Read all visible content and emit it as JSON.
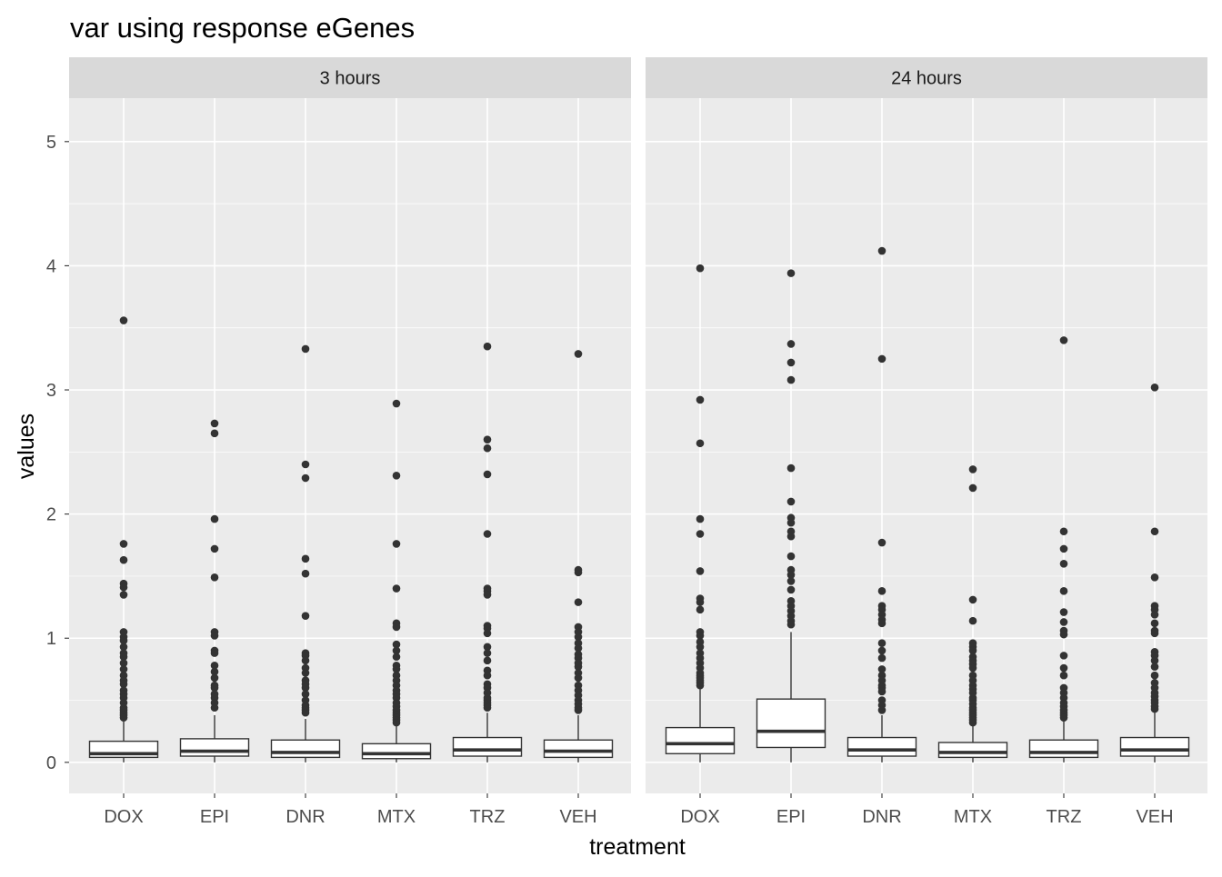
{
  "chart_data": {
    "type": "boxplot",
    "title": "var using response eGenes",
    "xlabel": "treatment",
    "ylabel": "values",
    "ylim": [
      -0.25,
      5.35
    ],
    "yticks": [
      0,
      1,
      2,
      3,
      4,
      5
    ],
    "categories": [
      "DOX",
      "EPI",
      "DNR",
      "MTX",
      "TRZ",
      "VEH"
    ],
    "grid": true,
    "colors": {
      "panel_bg": "#EBEBEB",
      "strip_bg": "#D9D9D9",
      "grid_major": "#FFFFFF",
      "box_fill": "#FFFFFF",
      "box_line": "#333333",
      "point": "#333333",
      "tick_text": "#4D4D4D",
      "text": "#000000"
    },
    "panels": [
      {
        "label": "3 hours",
        "boxes": [
          {
            "category": "DOX",
            "lower_whisker": 0.0,
            "q1": 0.04,
            "median": 0.07,
            "q3": 0.17,
            "upper_whisker": 0.33,
            "outliers": [
              3.56,
              1.76,
              1.63,
              1.44,
              1.41,
              1.35,
              1.05,
              1.01,
              0.98,
              0.93,
              0.88,
              0.85,
              0.8,
              0.75,
              0.7,
              0.66,
              0.63,
              0.58,
              0.55,
              0.52,
              0.48,
              0.44,
              0.42,
              0.4,
              0.38,
              0.36
            ]
          },
          {
            "category": "EPI",
            "lower_whisker": 0.0,
            "q1": 0.05,
            "median": 0.09,
            "q3": 0.19,
            "upper_whisker": 0.38,
            "outliers": [
              2.73,
              2.65,
              1.96,
              1.72,
              1.49,
              1.05,
              1.02,
              0.9,
              0.88,
              0.78,
              0.73,
              0.68,
              0.62,
              0.6,
              0.55,
              0.52,
              0.48,
              0.44
            ]
          },
          {
            "category": "DNR",
            "lower_whisker": 0.0,
            "q1": 0.04,
            "median": 0.08,
            "q3": 0.18,
            "upper_whisker": 0.35,
            "outliers": [
              3.33,
              2.4,
              2.29,
              1.64,
              1.52,
              1.18,
              0.88,
              0.86,
              0.82,
              0.76,
              0.72,
              0.66,
              0.63,
              0.6,
              0.55,
              0.5,
              0.46,
              0.44,
              0.42,
              0.4
            ]
          },
          {
            "category": "MTX",
            "lower_whisker": 0.0,
            "q1": 0.03,
            "median": 0.07,
            "q3": 0.15,
            "upper_whisker": 0.3,
            "outliers": [
              2.89,
              2.31,
              1.76,
              1.4,
              1.12,
              1.09,
              0.95,
              0.9,
              0.85,
              0.78,
              0.75,
              0.7,
              0.66,
              0.62,
              0.58,
              0.55,
              0.52,
              0.48,
              0.45,
              0.42,
              0.4,
              0.38,
              0.36,
              0.34,
              0.32
            ]
          },
          {
            "category": "TRZ",
            "lower_whisker": 0.0,
            "q1": 0.05,
            "median": 0.1,
            "q3": 0.2,
            "upper_whisker": 0.4,
            "outliers": [
              3.35,
              2.6,
              2.53,
              2.32,
              1.84,
              1.4,
              1.38,
              1.35,
              1.1,
              1.08,
              1.04,
              0.93,
              0.88,
              0.82,
              0.74,
              0.7,
              0.63,
              0.6,
              0.56,
              0.52,
              0.5,
              0.48,
              0.46,
              0.44
            ]
          },
          {
            "category": "VEH",
            "lower_whisker": 0.0,
            "q1": 0.04,
            "median": 0.09,
            "q3": 0.18,
            "upper_whisker": 0.38,
            "outliers": [
              3.29,
              1.55,
              1.53,
              1.29,
              1.09,
              1.05,
              1.01,
              0.96,
              0.92,
              0.87,
              0.84,
              0.8,
              0.77,
              0.72,
              0.68,
              0.62,
              0.58,
              0.54,
              0.5,
              0.47,
              0.44,
              0.42
            ]
          }
        ]
      },
      {
        "label": "24 hours",
        "boxes": [
          {
            "category": "DOX",
            "lower_whisker": 0.0,
            "q1": 0.07,
            "median": 0.15,
            "q3": 0.28,
            "upper_whisker": 0.59,
            "outliers": [
              3.98,
              2.92,
              2.57,
              1.96,
              1.84,
              1.54,
              1.32,
              1.29,
              1.23,
              1.05,
              1.02,
              0.97,
              0.93,
              0.88,
              0.84,
              0.8,
              0.76,
              0.72,
              0.7,
              0.68,
              0.66,
              0.64,
              0.62
            ]
          },
          {
            "category": "EPI",
            "lower_whisker": 0.0,
            "q1": 0.12,
            "median": 0.25,
            "q3": 0.51,
            "upper_whisker": 1.05,
            "outliers": [
              3.94,
              3.37,
              3.22,
              3.08,
              2.37,
              2.1,
              1.97,
              1.93,
              1.86,
              1.82,
              1.66,
              1.55,
              1.51,
              1.46,
              1.39,
              1.3,
              1.26,
              1.22,
              1.18,
              1.14,
              1.11
            ]
          },
          {
            "category": "DNR",
            "lower_whisker": 0.0,
            "q1": 0.05,
            "median": 0.1,
            "q3": 0.2,
            "upper_whisker": 0.38,
            "outliers": [
              4.12,
              3.25,
              1.77,
              1.38,
              1.26,
              1.23,
              1.19,
              1.15,
              1.12,
              0.96,
              0.9,
              0.84,
              0.75,
              0.7,
              0.66,
              0.62,
              0.6,
              0.57,
              0.5,
              0.46,
              0.42
            ]
          },
          {
            "category": "MTX",
            "lower_whisker": 0.0,
            "q1": 0.04,
            "median": 0.08,
            "q3": 0.16,
            "upper_whisker": 0.3,
            "outliers": [
              2.36,
              2.21,
              1.31,
              1.14,
              0.96,
              0.93,
              0.9,
              0.85,
              0.82,
              0.79,
              0.76,
              0.7,
              0.66,
              0.62,
              0.59,
              0.56,
              0.52,
              0.5,
              0.47,
              0.44,
              0.42,
              0.4,
              0.38,
              0.36,
              0.34,
              0.32
            ]
          },
          {
            "category": "TRZ",
            "lower_whisker": 0.0,
            "q1": 0.04,
            "median": 0.08,
            "q3": 0.18,
            "upper_whisker": 0.34,
            "outliers": [
              3.4,
              1.86,
              1.72,
              1.6,
              1.38,
              1.21,
              1.13,
              1.06,
              1.03,
              0.86,
              0.76,
              0.7,
              0.6,
              0.56,
              0.52,
              0.48,
              0.45,
              0.42,
              0.4,
              0.38,
              0.36
            ]
          },
          {
            "category": "VEH",
            "lower_whisker": 0.0,
            "q1": 0.05,
            "median": 0.1,
            "q3": 0.2,
            "upper_whisker": 0.41,
            "outliers": [
              3.02,
              1.86,
              1.49,
              1.26,
              1.23,
              1.19,
              1.12,
              1.06,
              1.04,
              0.89,
              0.86,
              0.82,
              0.77,
              0.7,
              0.64,
              0.6,
              0.56,
              0.53,
              0.5,
              0.48,
              0.45,
              0.43
            ]
          }
        ]
      }
    ]
  }
}
